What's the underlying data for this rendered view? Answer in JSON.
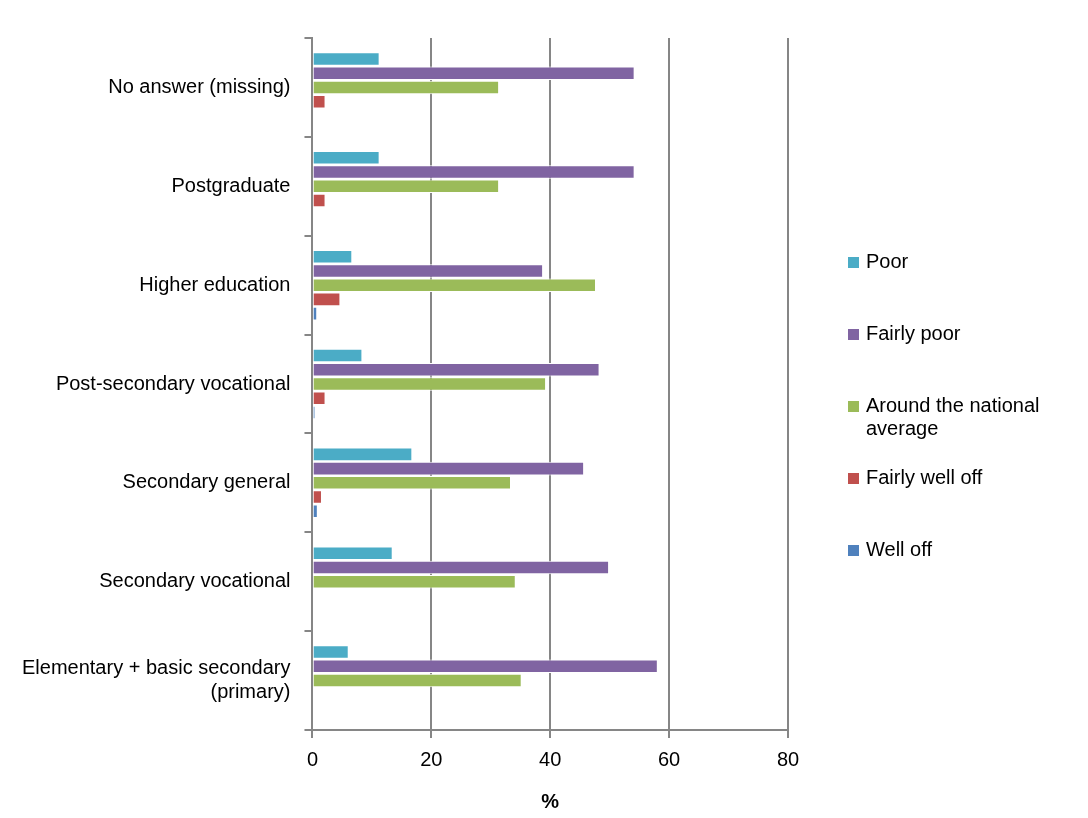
{
  "chart_data": {
    "type": "bar",
    "orientation": "horizontal",
    "xlabel": "%",
    "categories": [
      "No answer (missing)",
      "Postgraduate",
      "Higher education",
      "Post-secondary vocational",
      "Secondary general",
      "Secondary vocational",
      "Elementary + basic secondary (primary)"
    ],
    "series": [
      {
        "name": "Poor",
        "color": "#4bacc6",
        "values": [
          11.3,
          11.3,
          6.7,
          8.4,
          16.8,
          13.5,
          6.1
        ]
      },
      {
        "name": "Fairly poor",
        "color": "#8064a2",
        "values": [
          54.2,
          54.2,
          38.8,
          48.3,
          45.7,
          49.9,
          58.1
        ]
      },
      {
        "name": "Around the national average",
        "color": "#9bbb59",
        "values": [
          31.4,
          31.4,
          47.7,
          39.3,
          33.4,
          34.2,
          35.2
        ]
      },
      {
        "name": "Fairly well off",
        "color": "#c0504d",
        "values": [
          2.2,
          2.2,
          4.7,
          2.2,
          1.6,
          null,
          null
        ]
      },
      {
        "name": "Well off",
        "color": "#4f81bd",
        "values": [
          null,
          null,
          0.8,
          0.5,
          0.9,
          null,
          null
        ]
      }
    ],
    "xlim": [
      0,
      80
    ],
    "xticks": [
      0,
      20,
      40,
      60,
      80
    ],
    "grid": "x",
    "legend": "right"
  }
}
